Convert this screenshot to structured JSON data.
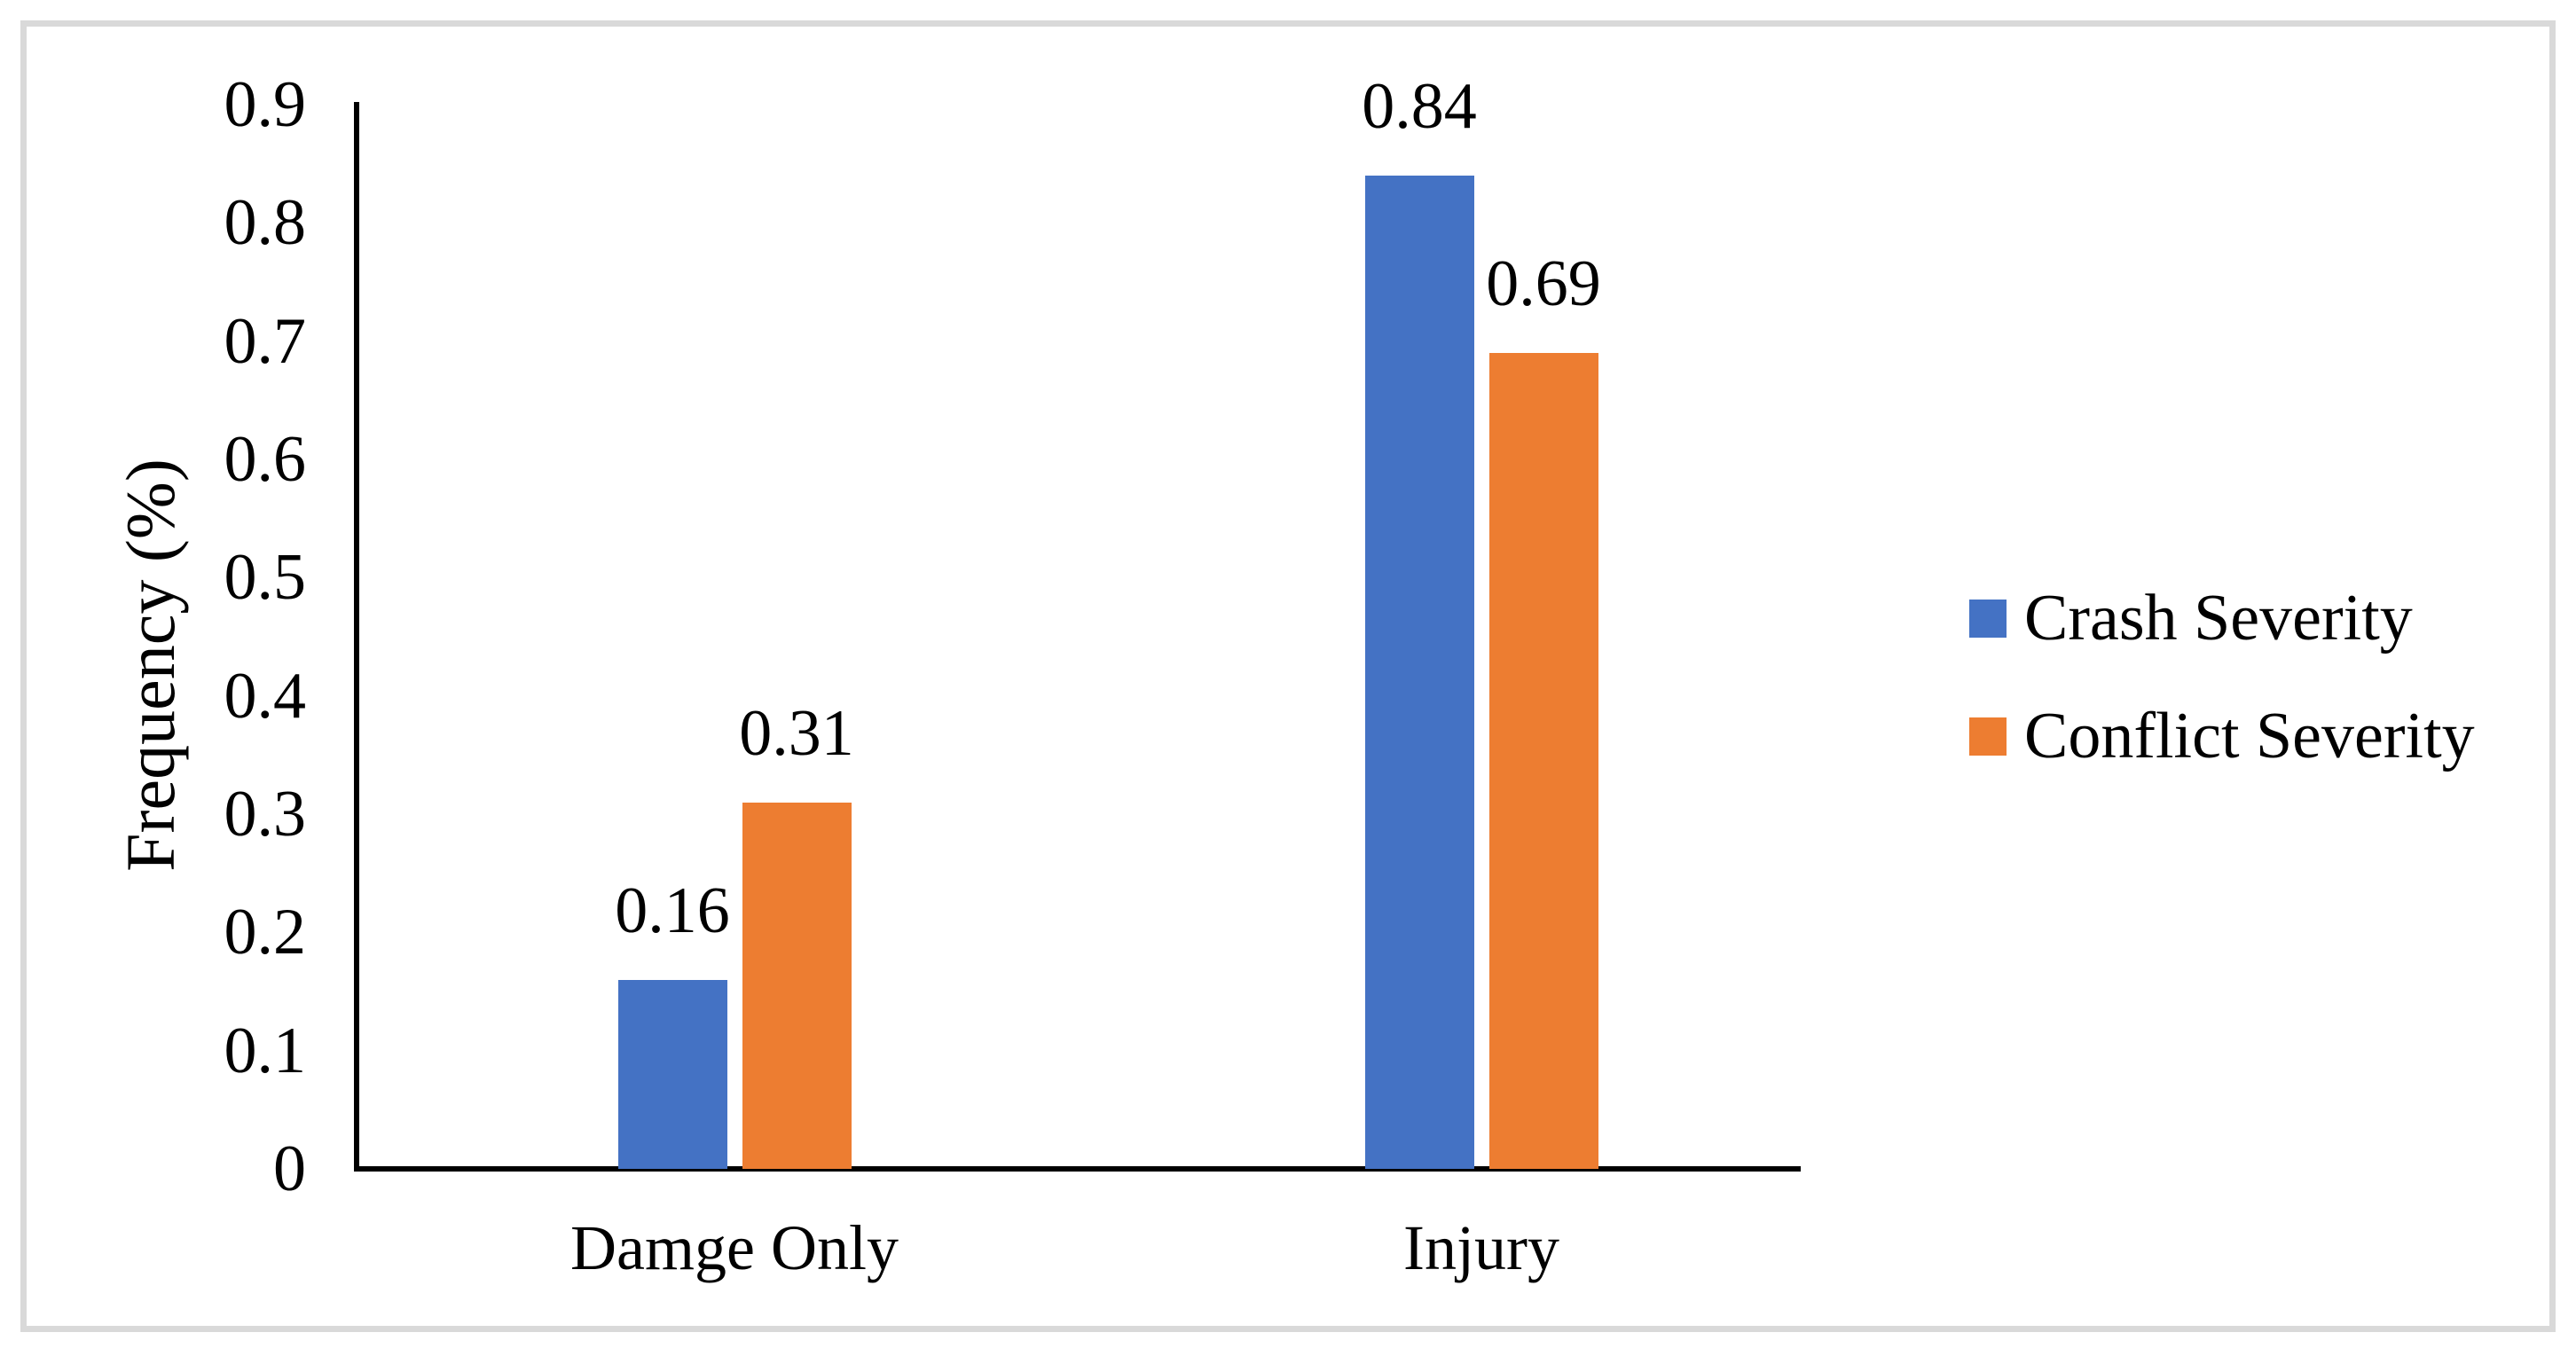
{
  "chart_data": {
    "type": "bar",
    "title": "",
    "ylabel": "Frequency (%)",
    "xlabel": "",
    "categories": [
      "Damge Only",
      "Injury"
    ],
    "series": [
      {
        "name": "Crash Severity",
        "color": "#4472C4",
        "values": [
          0.16,
          0.84
        ],
        "data_labels": [
          "0.16",
          "0.84"
        ]
      },
      {
        "name": "Conflict Severity",
        "color": "#ED7D31",
        "values": [
          0.31,
          0.69
        ],
        "data_labels": [
          "0.31",
          "0.69"
        ]
      }
    ],
    "ylim": [
      0,
      0.9
    ],
    "yticks": [
      {
        "label": "0.9",
        "value": 0.9
      },
      {
        "label": "0.8",
        "value": 0.8
      },
      {
        "label": "0.7",
        "value": 0.7
      },
      {
        "label": "0.6",
        "value": 0.6
      },
      {
        "label": "0.5",
        "value": 0.5
      },
      {
        "label": "0.4",
        "value": 0.4
      },
      {
        "label": "0.3",
        "value": 0.3
      },
      {
        "label": "0.2",
        "value": 0.2
      },
      {
        "label": "0.1",
        "value": 0.1
      },
      {
        "label": "0",
        "value": 0
      }
    ],
    "grid": false,
    "legend_position": "right",
    "colors": {
      "axis": "#000000",
      "text": "#000000",
      "frame_border": "#D9D9D9",
      "background": "#FFFFFF"
    }
  }
}
